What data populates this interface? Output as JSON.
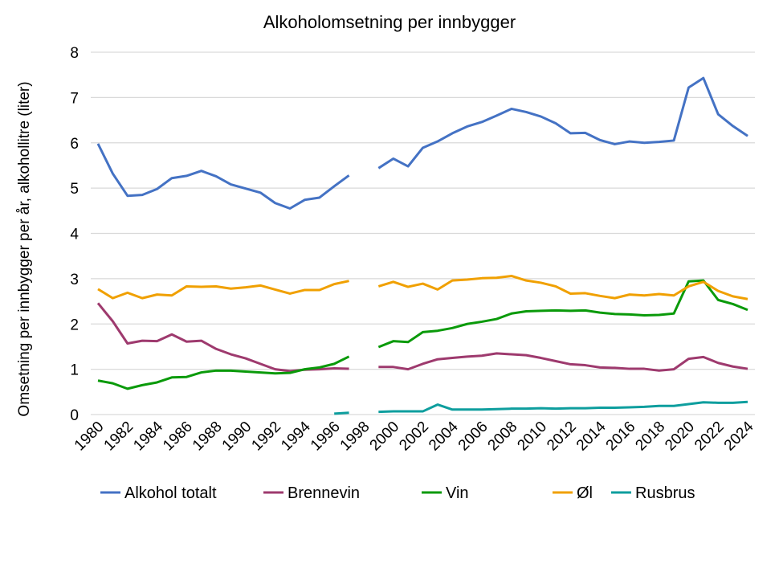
{
  "chart_data": {
    "type": "line",
    "title": "Alkoholomsetning per innbygger",
    "xlabel": "",
    "ylabel": "Omsetning per innbygger per år, alkohollitre (liter)",
    "ylim": [
      0,
      8
    ],
    "yticks": [
      0,
      1,
      2,
      3,
      4,
      5,
      6,
      7,
      8
    ],
    "xlim": [
      1980,
      2024
    ],
    "xticks": [
      "1980",
      "1982",
      "1984",
      "1986",
      "1988",
      "1990",
      "1992",
      "1994",
      "1996",
      "1998",
      "2000",
      "2002",
      "2004",
      "2006",
      "2008",
      "2010",
      "2012",
      "2014",
      "2016",
      "2018",
      "2020",
      "2022",
      "2024"
    ],
    "grid": true,
    "legend_position": "bottom",
    "x": [
      1980,
      1981,
      1982,
      1983,
      1984,
      1985,
      1986,
      1987,
      1988,
      1989,
      1990,
      1991,
      1992,
      1993,
      1994,
      1995,
      1996,
      1997,
      1998,
      1999,
      2000,
      2001,
      2002,
      2003,
      2004,
      2005,
      2006,
      2007,
      2008,
      2009,
      2010,
      2011,
      2012,
      2013,
      2014,
      2015,
      2016,
      2017,
      2018,
      2019,
      2020,
      2021,
      2022,
      2023,
      2024
    ],
    "series": [
      {
        "name": "Alkohol totalt",
        "color": "#4472C4",
        "values": [
          5.98,
          5.32,
          4.83,
          4.85,
          4.98,
          5.22,
          5.27,
          5.38,
          5.26,
          5.08,
          4.99,
          4.9,
          4.67,
          4.55,
          4.74,
          4.79,
          5.04,
          5.28,
          null,
          5.44,
          5.65,
          5.48,
          5.89,
          6.03,
          6.21,
          6.36,
          6.46,
          6.6,
          6.75,
          6.68,
          6.58,
          6.43,
          6.21,
          6.22,
          6.06,
          5.97,
          6.03,
          6.0,
          6.02,
          6.05,
          7.22,
          7.43,
          6.63,
          6.37,
          6.15
        ]
      },
      {
        "name": "Brennevin",
        "color": "#9E3A6E",
        "values": [
          2.46,
          2.06,
          1.57,
          1.63,
          1.62,
          1.77,
          1.61,
          1.63,
          1.45,
          1.33,
          1.24,
          1.12,
          1.0,
          0.96,
          0.99,
          1.0,
          1.02,
          1.01,
          null,
          1.05,
          1.05,
          1.0,
          1.12,
          1.22,
          1.25,
          1.28,
          1.3,
          1.35,
          1.33,
          1.31,
          1.25,
          1.18,
          1.11,
          1.09,
          1.04,
          1.03,
          1.01,
          1.01,
          0.97,
          1.0,
          1.23,
          1.27,
          1.14,
          1.06,
          1.01
        ]
      },
      {
        "name": "Vin",
        "color": "#0A9A0A",
        "values": [
          0.75,
          0.69,
          0.57,
          0.65,
          0.71,
          0.82,
          0.83,
          0.93,
          0.97,
          0.97,
          0.95,
          0.93,
          0.91,
          0.92,
          1.0,
          1.04,
          1.12,
          1.28,
          null,
          1.49,
          1.62,
          1.6,
          1.82,
          1.85,
          1.91,
          2.0,
          2.05,
          2.11,
          2.23,
          2.28,
          2.29,
          2.3,
          2.29,
          2.3,
          2.25,
          2.22,
          2.21,
          2.19,
          2.2,
          2.23,
          2.94,
          2.96,
          2.53,
          2.44,
          2.31
        ]
      },
      {
        "name": "Øl",
        "color": "#F0A000",
        "values": [
          2.77,
          2.57,
          2.69,
          2.57,
          2.65,
          2.63,
          2.83,
          2.82,
          2.83,
          2.78,
          2.81,
          2.85,
          2.76,
          2.67,
          2.75,
          2.75,
          2.88,
          2.95,
          null,
          2.83,
          2.93,
          2.82,
          2.89,
          2.76,
          2.96,
          2.98,
          3.01,
          3.02,
          3.06,
          2.96,
          2.91,
          2.83,
          2.67,
          2.68,
          2.62,
          2.57,
          2.65,
          2.63,
          2.66,
          2.63,
          2.83,
          2.93,
          2.73,
          2.61,
          2.55
        ]
      },
      {
        "name": "Rusbrus",
        "color": "#0E9E9E",
        "values": [
          null,
          null,
          null,
          null,
          null,
          null,
          null,
          null,
          null,
          null,
          null,
          null,
          null,
          null,
          null,
          null,
          0.02,
          0.04,
          null,
          0.06,
          0.07,
          0.07,
          0.07,
          0.22,
          0.11,
          0.11,
          0.11,
          0.12,
          0.13,
          0.13,
          0.14,
          0.13,
          0.14,
          0.14,
          0.15,
          0.15,
          0.16,
          0.17,
          0.19,
          0.19,
          0.23,
          0.27,
          0.26,
          0.26,
          0.28
        ]
      }
    ]
  }
}
